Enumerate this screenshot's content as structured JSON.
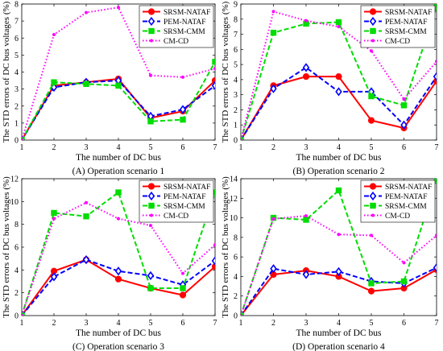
{
  "chart_data": [
    {
      "type": "line",
      "caption": "(A) Operation scenario 1",
      "xlabel": "The number of DC bus",
      "ylabel": "The STD errors of DC bus voltages (%)",
      "x": [
        1,
        2,
        3,
        4,
        5,
        6,
        7
      ],
      "xlim": [
        1,
        7
      ],
      "ylim": [
        0,
        8
      ],
      "yticks": [
        0,
        1,
        2,
        3,
        4,
        5,
        6,
        7,
        8
      ],
      "legend_position": "top-right",
      "series": [
        {
          "name": "SRSM-NATAF",
          "values": [
            0.0,
            3.2,
            3.4,
            3.6,
            1.3,
            1.7,
            3.5
          ]
        },
        {
          "name": "PEM-NATAF",
          "values": [
            0.0,
            3.1,
            3.4,
            3.5,
            1.4,
            1.8,
            3.2
          ]
        },
        {
          "name": "SRSM-CMM",
          "values": [
            0.0,
            3.4,
            3.3,
            3.2,
            1.1,
            1.2,
            4.6
          ]
        },
        {
          "name": "CM-CD",
          "values": [
            0.0,
            6.2,
            7.5,
            7.8,
            3.8,
            3.7,
            4.2
          ]
        }
      ]
    },
    {
      "type": "line",
      "caption": "(B) Operation scenario 2",
      "xlabel": "The number of DC bus",
      "ylabel": "The STD errors of DC bus voltages (%)",
      "x": [
        1,
        2,
        3,
        4,
        5,
        6,
        7
      ],
      "xlim": [
        1,
        7
      ],
      "ylim": [
        0,
        9
      ],
      "yticks": [
        0,
        1,
        2,
        3,
        4,
        5,
        6,
        7,
        8,
        9
      ],
      "legend_position": "top-right",
      "series": [
        {
          "name": "SRSM-NATAF",
          "values": [
            0.0,
            3.6,
            4.2,
            4.2,
            1.3,
            0.8,
            3.9
          ]
        },
        {
          "name": "PEM-NATAF",
          "values": [
            0.0,
            3.4,
            4.8,
            3.2,
            3.2,
            1.0,
            4.2
          ]
        },
        {
          "name": "SRSM-CMM",
          "values": [
            0.0,
            7.1,
            7.7,
            7.8,
            2.9,
            2.3,
            8.8
          ]
        },
        {
          "name": "CM-CD",
          "values": [
            0.0,
            8.5,
            7.9,
            7.5,
            5.9,
            2.7,
            5.2
          ]
        }
      ]
    },
    {
      "type": "line",
      "caption": "(C) Operation scenario 3",
      "xlabel": "The number of DC bus",
      "ylabel": "The STD errors of DC bus voltages (%)",
      "x": [
        1,
        2,
        3,
        4,
        5,
        6,
        7
      ],
      "xlim": [
        1,
        7
      ],
      "ylim": [
        0,
        12
      ],
      "yticks": [
        0,
        2,
        4,
        6,
        8,
        10,
        12
      ],
      "legend_position": "top-right",
      "series": [
        {
          "name": "SRSM-NATAF",
          "values": [
            0.0,
            3.9,
            4.9,
            3.2,
            2.4,
            1.8,
            4.3
          ]
        },
        {
          "name": "PEM-NATAF",
          "values": [
            0.0,
            3.4,
            4.9,
            3.9,
            3.5,
            2.7,
            4.8
          ]
        },
        {
          "name": "SRSM-CMM",
          "values": [
            0.0,
            9.0,
            8.7,
            10.8,
            2.4,
            2.4,
            10.8
          ]
        },
        {
          "name": "CM-CD",
          "values": [
            0.0,
            8.5,
            9.9,
            8.5,
            7.9,
            3.7,
            6.2
          ]
        }
      ]
    },
    {
      "type": "line",
      "caption": "(D) Operation scenario 4",
      "xlabel": "The number of DC bus",
      "ylabel": "The STD errors of DC bus voltages (%)",
      "x": [
        1,
        2,
        3,
        4,
        5,
        6,
        7
      ],
      "xlim": [
        1,
        7
      ],
      "ylim": [
        0,
        14
      ],
      "yticks": [
        0,
        2,
        4,
        6,
        8,
        10,
        12,
        14
      ],
      "legend_position": "top-right",
      "series": [
        {
          "name": "SRSM-NATAF",
          "values": [
            0.0,
            4.2,
            4.6,
            4.0,
            2.5,
            2.8,
            4.7
          ]
        },
        {
          "name": "PEM-NATAF",
          "values": [
            0.0,
            4.8,
            4.2,
            4.5,
            3.5,
            3.3,
            4.9
          ]
        },
        {
          "name": "SRSM-CMM",
          "values": [
            0.0,
            10.0,
            9.8,
            12.8,
            3.3,
            3.5,
            13.8
          ]
        },
        {
          "name": "CM-CD",
          "values": [
            0.0,
            9.9,
            10.2,
            8.3,
            8.2,
            5.4,
            8.2
          ]
        }
      ]
    }
  ],
  "series_styles": [
    {
      "color": "#ff0000",
      "dash": "solid",
      "marker": "circle"
    },
    {
      "color": "#0000ff",
      "dash": "dash",
      "marker": "diamond"
    },
    {
      "color": "#00dd00",
      "dash": "dash",
      "marker": "square"
    },
    {
      "color": "#ff00ff",
      "dash": "dot",
      "marker": "dot"
    }
  ]
}
